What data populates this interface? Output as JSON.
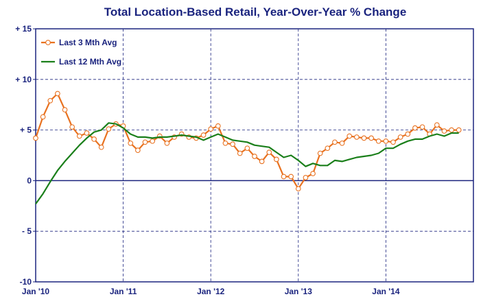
{
  "chart_data": {
    "type": "line",
    "title": "Total Location-Based Retail, Year-Over-Year % Change",
    "xlabel": "",
    "ylabel": "",
    "ylim": [
      -10,
      15
    ],
    "y_ticks": [
      "+ 15",
      "+ 10",
      "+ 5",
      "0",
      "- 5",
      "-10"
    ],
    "y_tick_values": [
      15,
      10,
      5,
      0,
      -5,
      -10
    ],
    "x_tick_labels": [
      "Jan '10",
      "Jan '11",
      "Jan '12",
      "Jan '13",
      "Jan '14"
    ],
    "x_tick_positions": [
      0,
      12,
      24,
      36,
      48
    ],
    "xlim": [
      0,
      60
    ],
    "grid": true,
    "legend_position": "top-left",
    "colors": {
      "Last 3 Mth Avg": "#e8711f",
      "Last 12 Mth Avg": "#1a7f1a",
      "axis": "#1a237e",
      "grid": "#1a237e"
    },
    "series": [
      {
        "name": "Last 3 Mth Avg",
        "x": [
          0,
          1,
          2,
          3,
          4,
          5,
          6,
          7,
          8,
          9,
          10,
          11,
          12,
          13,
          14,
          15,
          16,
          17,
          18,
          19,
          20,
          21,
          22,
          23,
          24,
          25,
          26,
          27,
          28,
          29,
          30,
          31,
          32,
          33,
          34,
          35,
          36,
          37,
          38,
          39,
          40,
          41,
          42,
          43,
          44,
          45,
          46,
          47,
          48,
          49,
          50,
          51,
          52,
          53,
          54,
          55,
          56,
          57,
          58
        ],
        "values": [
          4.2,
          6.3,
          7.9,
          8.6,
          7.0,
          5.3,
          4.4,
          4.7,
          4.1,
          3.3,
          5.1,
          5.6,
          5.4,
          3.7,
          3.0,
          3.8,
          3.9,
          4.4,
          3.7,
          4.3,
          4.6,
          4.3,
          4.2,
          4.5,
          5.1,
          5.4,
          3.7,
          3.6,
          2.7,
          3.2,
          2.4,
          1.9,
          2.8,
          2.1,
          0.4,
          0.4,
          -0.8,
          0.3,
          0.7,
          2.7,
          3.2,
          3.8,
          3.7,
          4.4,
          4.3,
          4.2,
          4.2,
          3.9,
          3.9,
          3.8,
          4.3,
          4.6,
          5.2,
          5.3,
          4.6,
          5.5,
          4.9,
          5.0,
          5.0
        ],
        "markers": true
      },
      {
        "name": "Last 12 Mth Avg",
        "x": [
          0,
          1,
          2,
          3,
          4,
          5,
          6,
          7,
          8,
          9,
          10,
          11,
          12,
          13,
          14,
          15,
          16,
          17,
          18,
          19,
          20,
          21,
          22,
          23,
          24,
          25,
          26,
          27,
          28,
          29,
          30,
          31,
          32,
          33,
          34,
          35,
          36,
          37,
          38,
          39,
          40,
          41,
          42,
          43,
          44,
          45,
          46,
          47,
          48,
          49,
          50,
          51,
          52,
          53,
          54,
          55,
          56,
          57,
          58
        ],
        "values": [
          -2.3,
          -1.3,
          -0.1,
          1.0,
          1.9,
          2.7,
          3.5,
          4.2,
          4.8,
          5.0,
          5.7,
          5.6,
          5.2,
          4.6,
          4.3,
          4.3,
          4.2,
          4.3,
          4.3,
          4.4,
          4.5,
          4.4,
          4.3,
          4.0,
          4.3,
          4.6,
          4.3,
          4.0,
          3.9,
          3.8,
          3.5,
          3.4,
          3.3,
          2.8,
          2.3,
          2.5,
          2.0,
          1.4,
          1.7,
          1.5,
          1.5,
          2.0,
          1.9,
          2.1,
          2.3,
          2.4,
          2.5,
          2.7,
          3.2,
          3.2,
          3.6,
          3.9,
          4.1,
          4.1,
          4.4,
          4.6,
          4.4,
          4.7,
          4.7
        ],
        "markers": false
      }
    ]
  }
}
